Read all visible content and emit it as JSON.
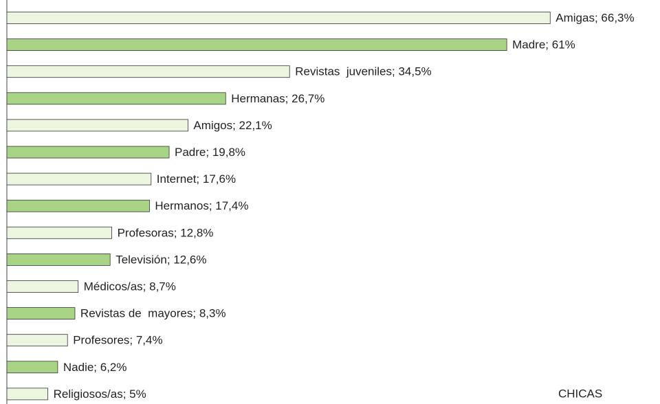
{
  "chart_data": {
    "type": "bar",
    "orientation": "horizontal",
    "values": [
      66.3,
      61,
      34.5,
      26.7,
      22.1,
      19.8,
      17.6,
      17.4,
      12.8,
      12.6,
      8.7,
      8.3,
      7.4,
      6.2,
      5
    ],
    "value_labels": [
      "Amigas; 66,3%",
      "Madre; 61%",
      "Revistas  juveniles; 34,5%",
      "Hermanas; 26,7%",
      "Amigos; 22,1%",
      "Padre; 19,8%",
      "Internet; 17,6%",
      "Hermanos; 17,4%",
      "Profesoras; 12,8%",
      "Televisión; 12,6%",
      "Médicos/as; 8,7%",
      "Revistas de  mayores; 8,3%",
      "Profesores; 7,4%",
      "Nadie; 6,2%",
      "Religiosos/as; 5%"
    ],
    "colors": [
      "#ebf5df",
      "#a9d486",
      "#ebf5df",
      "#a9d486",
      "#ebf5df",
      "#a9d486",
      "#ebf5df",
      "#a9d486",
      "#ebf5df",
      "#a9d486",
      "#ebf5df",
      "#a9d486",
      "#ebf5df",
      "#a9d486",
      "#ebf5df"
    ],
    "annotation": "CHICAS"
  }
}
